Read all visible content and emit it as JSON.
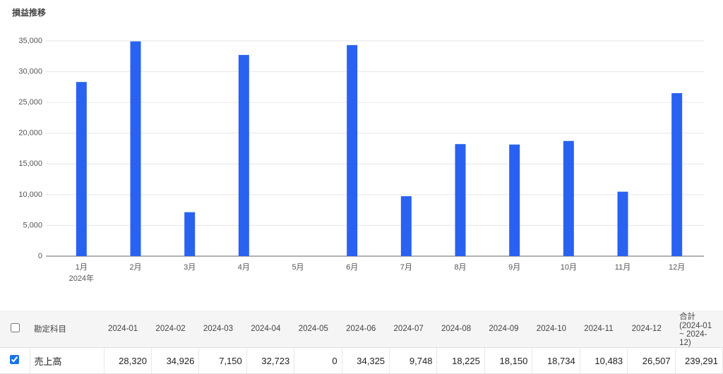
{
  "chart_data": {
    "type": "bar",
    "title": "損益推移",
    "categories": [
      "1月",
      "2月",
      "3月",
      "4月",
      "5月",
      "6月",
      "7月",
      "8月",
      "9月",
      "10月",
      "11月",
      "12月"
    ],
    "category_group": "2024年",
    "values": [
      28320,
      34926,
      7150,
      32723,
      0,
      34325,
      9748,
      18225,
      18150,
      18734,
      10483,
      26507
    ],
    "color": "#2962f0",
    "ylim": [
      0,
      35000
    ],
    "yticks": [
      0,
      {
        "value": 5000,
        "label": "5,000"
      },
      {
        "value": 10000,
        "label": "10,000"
      },
      {
        "value": 15000,
        "label": "15,000"
      },
      {
        "value": 20000,
        "label": "20,000"
      },
      {
        "value": 25000,
        "label": "25,000"
      },
      {
        "value": 30000,
        "label": "30,000"
      },
      {
        "value": 35000,
        "label": "35,000"
      }
    ],
    "grid": true
  },
  "table": {
    "header": [
      "勘定科目",
      "2024-01",
      "2024-02",
      "2024-03",
      "2024-04",
      "2024-05",
      "2024-06",
      "2024-07",
      "2024-08",
      "2024-09",
      "2024-10",
      "2024-11",
      "2024-12",
      "合計 (2024-01 ~ 2024-12)"
    ],
    "rows": [
      [
        "売上高",
        "28,320",
        "34,926",
        "7,150",
        "32,723",
        "0",
        "34,325",
        "9,748",
        "18,225",
        "18,150",
        "18,734",
        "10,483",
        "26,507",
        "239,291"
      ]
    ]
  }
}
